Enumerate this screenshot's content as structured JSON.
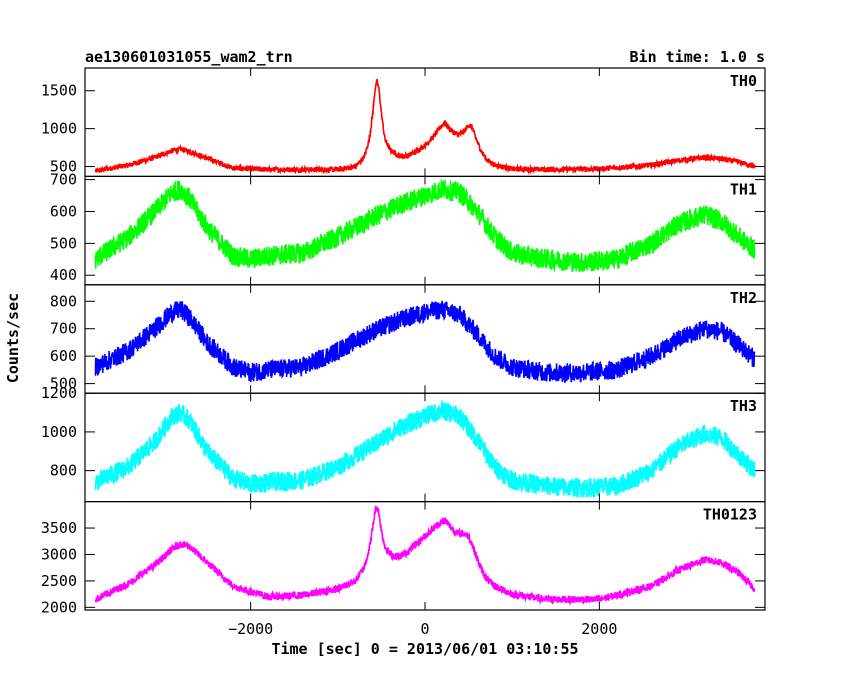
{
  "chart_data": {
    "type": "line",
    "title": "ae130601031055_wam2_trn",
    "bin_time": "Bin time: 1.0 s",
    "xlabel": "Time [sec] 0 = 2013/06/01 03:10:55",
    "ylabel": "Counts/sec",
    "xlim": [
      -3900,
      3900
    ],
    "xticks": [
      -2000,
      0,
      2000
    ],
    "xtick_labels": [
      "−2000",
      "0",
      "2000"
    ],
    "panels": [
      {
        "name": "TH0",
        "color": "#ff0000",
        "ylim": [
          370,
          1800
        ],
        "yticks": [
          500,
          1000,
          1500
        ],
        "noise": 35,
        "x": [
          -3780,
          -3400,
          -3100,
          -2900,
          -2800,
          -2700,
          -2500,
          -2200,
          -1800,
          -1400,
          -1000,
          -800,
          -700,
          -640,
          -600,
          -570,
          -550,
          -530,
          -500,
          -460,
          -400,
          -300,
          -200,
          -100,
          0,
          100,
          180,
          230,
          280,
          330,
          380,
          440,
          500,
          540,
          580,
          640,
          700,
          800,
          1000,
          1400,
          2000,
          2600,
          2900,
          3200,
          3400,
          3600,
          3780
        ],
        "y": [
          440,
          520,
          620,
          710,
          730,
          700,
          610,
          480,
          460,
          460,
          460,
          500,
          620,
          850,
          1200,
          1550,
          1620,
          1540,
          1200,
          860,
          720,
          640,
          640,
          700,
          780,
          900,
          1030,
          1080,
          1000,
          950,
          920,
          950,
          1050,
          1020,
          880,
          720,
          600,
          520,
          470,
          460,
          470,
          520,
          580,
          620,
          600,
          560,
          500
        ]
      },
      {
        "name": "TH1",
        "color": "#00ff00",
        "ylim": [
          370,
          710
        ],
        "yticks": [
          400,
          500,
          600,
          700
        ],
        "noise": 32,
        "x": [
          -3780,
          -3400,
          -3100,
          -2900,
          -2800,
          -2700,
          -2500,
          -2200,
          -2000,
          -1800,
          -1400,
          -1000,
          -600,
          -300,
          0,
          200,
          400,
          600,
          800,
          1000,
          1400,
          1800,
          2200,
          2600,
          2900,
          3200,
          3400,
          3600,
          3780
        ],
        "y": [
          450,
          520,
          600,
          660,
          670,
          640,
          550,
          460,
          450,
          460,
          470,
          520,
          580,
          620,
          650,
          670,
          660,
          600,
          520,
          470,
          450,
          440,
          450,
          500,
          560,
          590,
          570,
          520,
          480
        ]
      },
      {
        "name": "TH2",
        "color": "#0000ff",
        "ylim": [
          465,
          860
        ],
        "yticks": [
          500,
          600,
          700,
          800
        ],
        "noise": 35,
        "x": [
          -3780,
          -3400,
          -3100,
          -2900,
          -2800,
          -2700,
          -2500,
          -2200,
          -2000,
          -1800,
          -1400,
          -1000,
          -600,
          -300,
          0,
          200,
          400,
          600,
          800,
          1000,
          1400,
          1800,
          2200,
          2600,
          2900,
          3200,
          3400,
          3600,
          3780
        ],
        "y": [
          560,
          620,
          700,
          760,
          770,
          740,
          650,
          560,
          540,
          550,
          560,
          620,
          690,
          730,
          760,
          770,
          750,
          680,
          600,
          560,
          540,
          540,
          550,
          600,
          660,
          700,
          690,
          640,
          590
        ]
      },
      {
        "name": "TH3",
        "color": "#00ffff",
        "ylim": [
          640,
          1200
        ],
        "yticks": [
          800,
          1000,
          1200
        ],
        "noise": 50,
        "x": [
          -3780,
          -3400,
          -3100,
          -2900,
          -2800,
          -2700,
          -2500,
          -2200,
          -2000,
          -1800,
          -1400,
          -1000,
          -600,
          -300,
          0,
          200,
          400,
          600,
          800,
          1000,
          1400,
          1800,
          2200,
          2600,
          2900,
          3200,
          3400,
          3600,
          3780
        ],
        "y": [
          740,
          820,
          950,
          1080,
          1100,
          1060,
          900,
          760,
          730,
          740,
          750,
          820,
          930,
          1020,
          1080,
          1110,
          1080,
          960,
          820,
          750,
          720,
          710,
          720,
          800,
          920,
          990,
          970,
          880,
          800
        ]
      },
      {
        "name": "TH0123",
        "color": "#ff00ff",
        "ylim": [
          1950,
          4000
        ],
        "yticks": [
          2000,
          2500,
          3000,
          3500
        ],
        "noise": 70,
        "x": [
          -3780,
          -3400,
          -3100,
          -2900,
          -2800,
          -2700,
          -2500,
          -2200,
          -1800,
          -1400,
          -1000,
          -800,
          -700,
          -640,
          -600,
          -570,
          -550,
          -530,
          -500,
          -460,
          -400,
          -300,
          -200,
          -100,
          0,
          100,
          180,
          230,
          280,
          330,
          380,
          440,
          500,
          540,
          580,
          640,
          700,
          800,
          1000,
          1400,
          2000,
          2600,
          2900,
          3200,
          3400,
          3600,
          3780
        ],
        "y": [
          2150,
          2450,
          2800,
          3100,
          3200,
          3150,
          2850,
          2400,
          2200,
          2230,
          2350,
          2500,
          2750,
          3100,
          3500,
          3850,
          3900,
          3800,
          3450,
          3150,
          3000,
          2950,
          3050,
          3200,
          3350,
          3500,
          3600,
          3650,
          3550,
          3450,
          3400,
          3400,
          3350,
          3200,
          3000,
          2750,
          2550,
          2400,
          2250,
          2150,
          2150,
          2400,
          2700,
          2900,
          2850,
          2650,
          2350
        ]
      }
    ]
  }
}
